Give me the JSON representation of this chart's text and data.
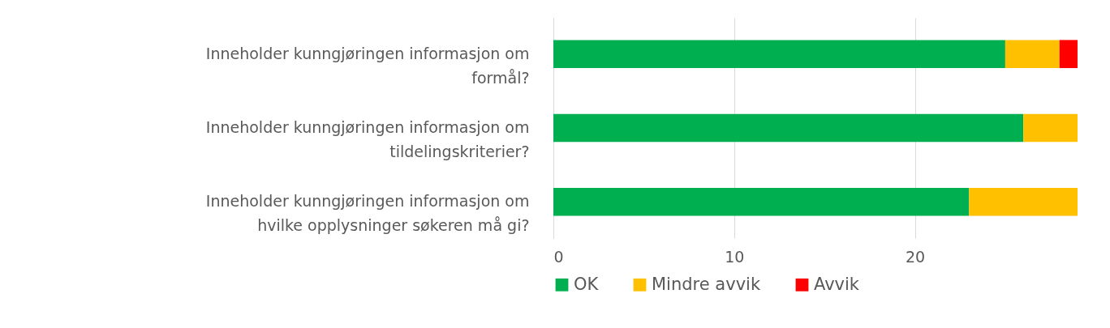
{
  "chart_data": {
    "type": "bar",
    "orientation": "horizontal",
    "stacked": true,
    "categories": [
      "Inneholder kunngjøringen informasjon om formål?",
      "Inneholder kunngjøringen informasjon om tildelingskriterier?",
      "Inneholder kunngjøringen informasjon om hvilke opplysninger søkeren må gi?"
    ],
    "series": [
      {
        "name": "OK",
        "color": "#00b050",
        "values": [
          25,
          26,
          23
        ]
      },
      {
        "name": "Mindre avvik",
        "color": "#ffc000",
        "values": [
          3,
          3,
          6
        ]
      },
      {
        "name": "Avvik",
        "color": "#ff0000",
        "values": [
          1,
          0,
          0
        ]
      }
    ],
    "xlim": [
      0,
      29
    ],
    "xticks": [
      0,
      10,
      20
    ],
    "grid": "x",
    "legend": "bottom"
  }
}
